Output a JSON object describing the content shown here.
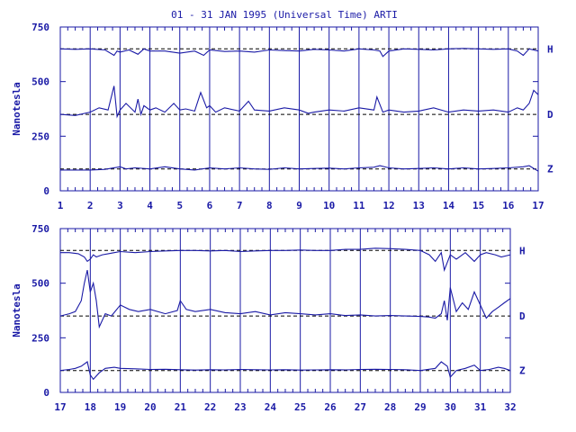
{
  "title": "01 - 31 JAN 1995 (Universal Time) ARTI",
  "colors": {
    "ink": "#1a1aa6",
    "background": "#ffffff"
  },
  "chart_data": [
    {
      "type": "line",
      "title": "01 - 31 JAN 1995 (Universal Time) ARTI",
      "ylabel": "Nanotesla",
      "xlim": [
        1,
        17
      ],
      "ylim": [
        0,
        750
      ],
      "xticks": [
        "1",
        "2",
        "3",
        "4",
        "5",
        "6",
        "7",
        "8",
        "9",
        "10",
        "11",
        "12",
        "13",
        "14",
        "15",
        "16",
        "17"
      ],
      "yticks": [
        "0",
        "250",
        "500",
        "750"
      ],
      "grid": "vertical lines at each day",
      "baselines": [
        650,
        350,
        100
      ],
      "series": [
        {
          "name": "H",
          "x": [
            1.0,
            1.5,
            2.0,
            2.5,
            2.8,
            2.9,
            3.0,
            3.3,
            3.6,
            3.8,
            4.0,
            4.5,
            5.0,
            5.5,
            5.8,
            6.0,
            6.5,
            7.0,
            7.5,
            8.0,
            8.5,
            9.0,
            9.5,
            10.0,
            10.5,
            11.0,
            11.5,
            11.7,
            11.8,
            12.0,
            12.5,
            13.0,
            13.5,
            14.0,
            14.5,
            15.0,
            15.5,
            16.0,
            16.3,
            16.5,
            16.7,
            17.0
          ],
          "y": [
            650,
            648,
            650,
            645,
            620,
            640,
            635,
            645,
            625,
            650,
            640,
            640,
            630,
            640,
            620,
            645,
            638,
            640,
            635,
            645,
            642,
            640,
            648,
            645,
            640,
            650,
            645,
            640,
            615,
            640,
            650,
            648,
            645,
            650,
            652,
            650,
            648,
            650,
            640,
            620,
            650,
            640
          ]
        },
        {
          "name": "D",
          "x": [
            1.0,
            1.5,
            2.0,
            2.3,
            2.6,
            2.8,
            2.9,
            3.0,
            3.2,
            3.5,
            3.6,
            3.7,
            3.8,
            4.0,
            4.2,
            4.5,
            4.8,
            5.0,
            5.2,
            5.5,
            5.7,
            5.9,
            6.0,
            6.2,
            6.5,
            7.0,
            7.3,
            7.5,
            8.0,
            8.5,
            9.0,
            9.3,
            9.5,
            10.0,
            10.5,
            11.0,
            11.5,
            11.6,
            11.8,
            12.0,
            12.5,
            13.0,
            13.5,
            14.0,
            14.5,
            15.0,
            15.5,
            16.0,
            16.3,
            16.5,
            16.7,
            16.85,
            17.0
          ],
          "y": [
            350,
            345,
            360,
            380,
            370,
            480,
            340,
            370,
            400,
            360,
            420,
            350,
            390,
            370,
            380,
            360,
            400,
            370,
            375,
            365,
            450,
            380,
            390,
            360,
            380,
            365,
            410,
            370,
            365,
            380,
            370,
            355,
            360,
            370,
            365,
            380,
            370,
            430,
            360,
            370,
            360,
            365,
            380,
            360,
            370,
            365,
            370,
            360,
            380,
            370,
            400,
            460,
            440
          ]
        },
        {
          "name": "Z",
          "x": [
            1.0,
            1.5,
            2.0,
            2.5,
            3.0,
            3.2,
            3.5,
            4.0,
            4.5,
            5.0,
            5.5,
            6.0,
            6.5,
            7.0,
            7.5,
            8.0,
            8.5,
            9.0,
            9.5,
            10.0,
            10.5,
            11.0,
            11.5,
            11.7,
            12.0,
            12.5,
            13.0,
            13.5,
            14.0,
            14.5,
            15.0,
            15.5,
            16.0,
            16.5,
            16.7,
            17.0
          ],
          "y": [
            95,
            95,
            95,
            98,
            110,
            100,
            105,
            100,
            110,
            100,
            95,
            105,
            100,
            105,
            100,
            98,
            105,
            100,
            102,
            104,
            100,
            105,
            108,
            115,
            105,
            100,
            102,
            105,
            100,
            105,
            100,
            102,
            105,
            110,
            115,
            90
          ]
        }
      ]
    },
    {
      "type": "line",
      "ylabel": "Nanotesla",
      "xlim": [
        17,
        32
      ],
      "ylim": [
        0,
        750
      ],
      "xticks": [
        "17",
        "18",
        "19",
        "20",
        "21",
        "22",
        "23",
        "24",
        "25",
        "26",
        "27",
        "28",
        "29",
        "30",
        "31",
        "32"
      ],
      "yticks": [
        "0",
        "250",
        "500",
        "750"
      ],
      "grid": "vertical lines at each day",
      "baselines": [
        650,
        350,
        100
      ],
      "series": [
        {
          "name": "H",
          "x": [
            17.0,
            17.3,
            17.6,
            17.8,
            17.9,
            18.0,
            18.1,
            18.2,
            18.4,
            18.6,
            18.8,
            19.0,
            19.5,
            20.0,
            20.5,
            21.0,
            21.5,
            22.0,
            22.5,
            23.0,
            23.5,
            24.0,
            24.5,
            25.0,
            25.5,
            26.0,
            26.5,
            27.0,
            27.5,
            28.0,
            28.5,
            29.0,
            29.3,
            29.5,
            29.7,
            29.8,
            30.0,
            30.2,
            30.5,
            30.8,
            31.0,
            31.2,
            31.5,
            31.7,
            32.0
          ],
          "y": [
            640,
            640,
            635,
            620,
            600,
            610,
            630,
            620,
            630,
            635,
            640,
            645,
            640,
            645,
            648,
            650,
            650,
            648,
            650,
            645,
            648,
            650,
            650,
            652,
            650,
            650,
            655,
            655,
            660,
            658,
            655,
            650,
            630,
            600,
            640,
            560,
            630,
            610,
            640,
            600,
            630,
            640,
            630,
            620,
            630
          ]
        },
        {
          "name": "D",
          "x": [
            17.0,
            17.3,
            17.5,
            17.7,
            17.8,
            17.9,
            18.0,
            18.1,
            18.2,
            18.3,
            18.5,
            18.7,
            19.0,
            19.3,
            19.6,
            20.0,
            20.5,
            20.9,
            21.0,
            21.2,
            21.5,
            22.0,
            22.5,
            23.0,
            23.5,
            24.0,
            24.5,
            25.0,
            25.5,
            26.0,
            26.5,
            27.0,
            27.5,
            28.0,
            28.5,
            29.0,
            29.3,
            29.5,
            29.7,
            29.8,
            29.9,
            30.0,
            30.2,
            30.4,
            30.6,
            30.8,
            31.0,
            31.2,
            31.4,
            31.6,
            31.8,
            32.0
          ],
          "y": [
            350,
            360,
            370,
            420,
            500,
            560,
            460,
            500,
            420,
            300,
            360,
            350,
            400,
            380,
            370,
            380,
            360,
            375,
            420,
            380,
            370,
            380,
            365,
            360,
            370,
            355,
            365,
            360,
            355,
            360,
            352,
            355,
            350,
            352,
            350,
            348,
            345,
            340,
            360,
            420,
            330,
            480,
            370,
            410,
            380,
            460,
            400,
            340,
            370,
            390,
            410,
            430
          ]
        },
        {
          "name": "Z",
          "x": [
            17.0,
            17.3,
            17.5,
            17.7,
            17.9,
            18.0,
            18.1,
            18.3,
            18.5,
            18.8,
            19.0,
            19.5,
            20.0,
            20.5,
            21.0,
            21.5,
            22.0,
            22.5,
            23.0,
            23.5,
            24.0,
            24.5,
            25.0,
            25.5,
            26.0,
            26.5,
            27.0,
            27.5,
            28.0,
            28.5,
            29.0,
            29.5,
            29.7,
            29.9,
            30.0,
            30.2,
            30.5,
            30.8,
            31.0,
            31.3,
            31.6,
            31.8,
            32.0
          ],
          "y": [
            100,
            105,
            110,
            120,
            140,
            80,
            60,
            90,
            110,
            115,
            110,
            108,
            105,
            106,
            104,
            102,
            104,
            103,
            105,
            104,
            103,
            104,
            102,
            103,
            104,
            103,
            105,
            106,
            105,
            104,
            100,
            110,
            140,
            120,
            70,
            100,
            110,
            125,
            100,
            105,
            115,
            110,
            100
          ]
        }
      ]
    }
  ]
}
